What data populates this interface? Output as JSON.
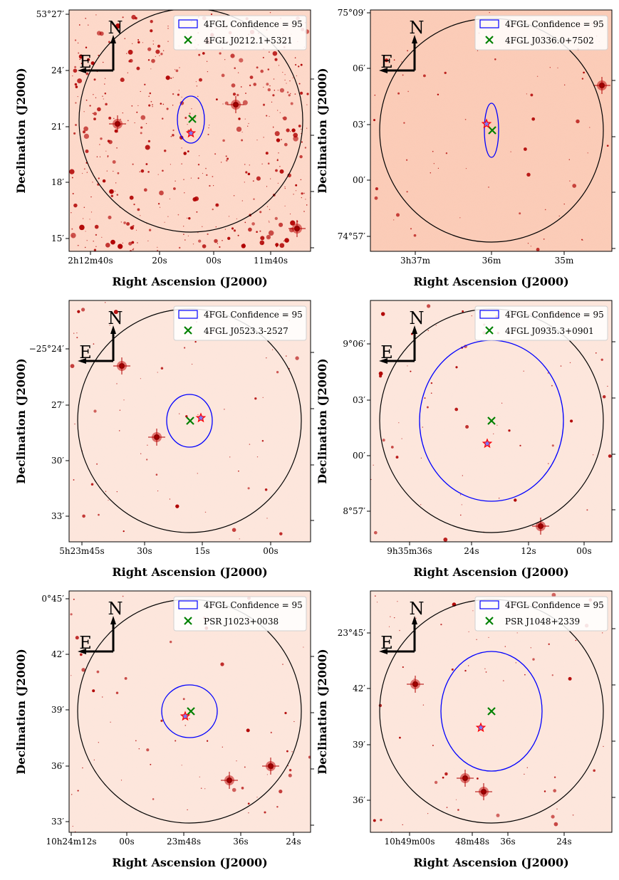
{
  "figure": {
    "xlabel": "Right Ascension (J2000)",
    "ylabel": "Declination (J2000)",
    "compass": {
      "north": "N",
      "east": "E"
    },
    "legend_ellipse_label": "4FGL Confidence = 95",
    "colors": {
      "ellipse": "#0000ff",
      "circle": "#000000",
      "source_marker": "#008000",
      "star_marker_edge": "#ff0000",
      "star_marker_fill": "#7a7cff",
      "background_dark": "#fbdfd2",
      "background_light": "#fde6dc",
      "point_sources": "#b00000"
    }
  },
  "chart_data": [
    {
      "type": "scatter",
      "panel": "top-left",
      "source": "4FGL J0212.1+5321",
      "x_ticks": [
        "2h12m40s",
        "20s",
        "00s",
        "11m40s"
      ],
      "y_ticks": [
        "53°27′",
        "24′",
        "21′",
        "18′",
        "15′"
      ],
      "legend": [
        "4FGL Confidence = 95",
        "4FGL J0212.1+5321"
      ],
      "legend_position": "top-right",
      "background": "dense star field"
    },
    {
      "type": "scatter",
      "panel": "top-right",
      "source": "4FGL J0336.0+7502",
      "x_ticks": [
        "3h37m",
        "36m",
        "35m"
      ],
      "y_ticks": [
        "75°09′",
        "06′",
        "03′",
        "00′",
        "74°57′"
      ],
      "legend": [
        "4FGL Confidence = 95",
        "4FGL J0336.0+7502"
      ],
      "legend_position": "top-right",
      "background": "sparse star field"
    },
    {
      "type": "scatter",
      "panel": "middle-left",
      "source": "4FGL J0523.3-2527",
      "x_ticks": [
        "5h23m45s",
        "30s",
        "15s",
        "00s"
      ],
      "y_ticks": [
        "−25°24′",
        "27′",
        "30′",
        "33′"
      ],
      "legend": [
        "4FGL Confidence = 95",
        "4FGL J0523.3-2527"
      ],
      "legend_position": "top-right",
      "background": "sparse star field"
    },
    {
      "type": "scatter",
      "panel": "middle-right",
      "source": "4FGL J0935.3+0901",
      "x_ticks": [
        "9h35m36s",
        "24s",
        "12s",
        "00s"
      ],
      "y_ticks": [
        "9°06′",
        "03′",
        "00′",
        "8°57′"
      ],
      "legend": [
        "4FGL Confidence = 95",
        "4FGL J0935.3+0901"
      ],
      "legend_position": "top-right",
      "background": "sparse star field"
    },
    {
      "type": "scatter",
      "panel": "bottom-left",
      "source": "PSR J1023+0038",
      "x_ticks": [
        "10h24m12s",
        "00s",
        "23m48s",
        "36s",
        "24s"
      ],
      "y_ticks": [
        "0°45′",
        "42′",
        "39′",
        "36′",
        "33′"
      ],
      "legend": [
        "4FGL Confidence = 95",
        "PSR J1023+0038"
      ],
      "legend_position": "top-right",
      "background": "sparse star field"
    },
    {
      "type": "scatter",
      "panel": "bottom-right",
      "source": "PSR J1048+2339",
      "x_ticks": [
        "10h49m00s",
        "48m48s",
        "36s",
        "24s"
      ],
      "y_ticks": [
        "23°45′",
        "42′",
        "39′",
        "36′"
      ],
      "legend": [
        "4FGL Confidence = 95",
        "PSR J1048+2339"
      ],
      "legend_position": "top-right",
      "background": "sparse star field"
    }
  ]
}
